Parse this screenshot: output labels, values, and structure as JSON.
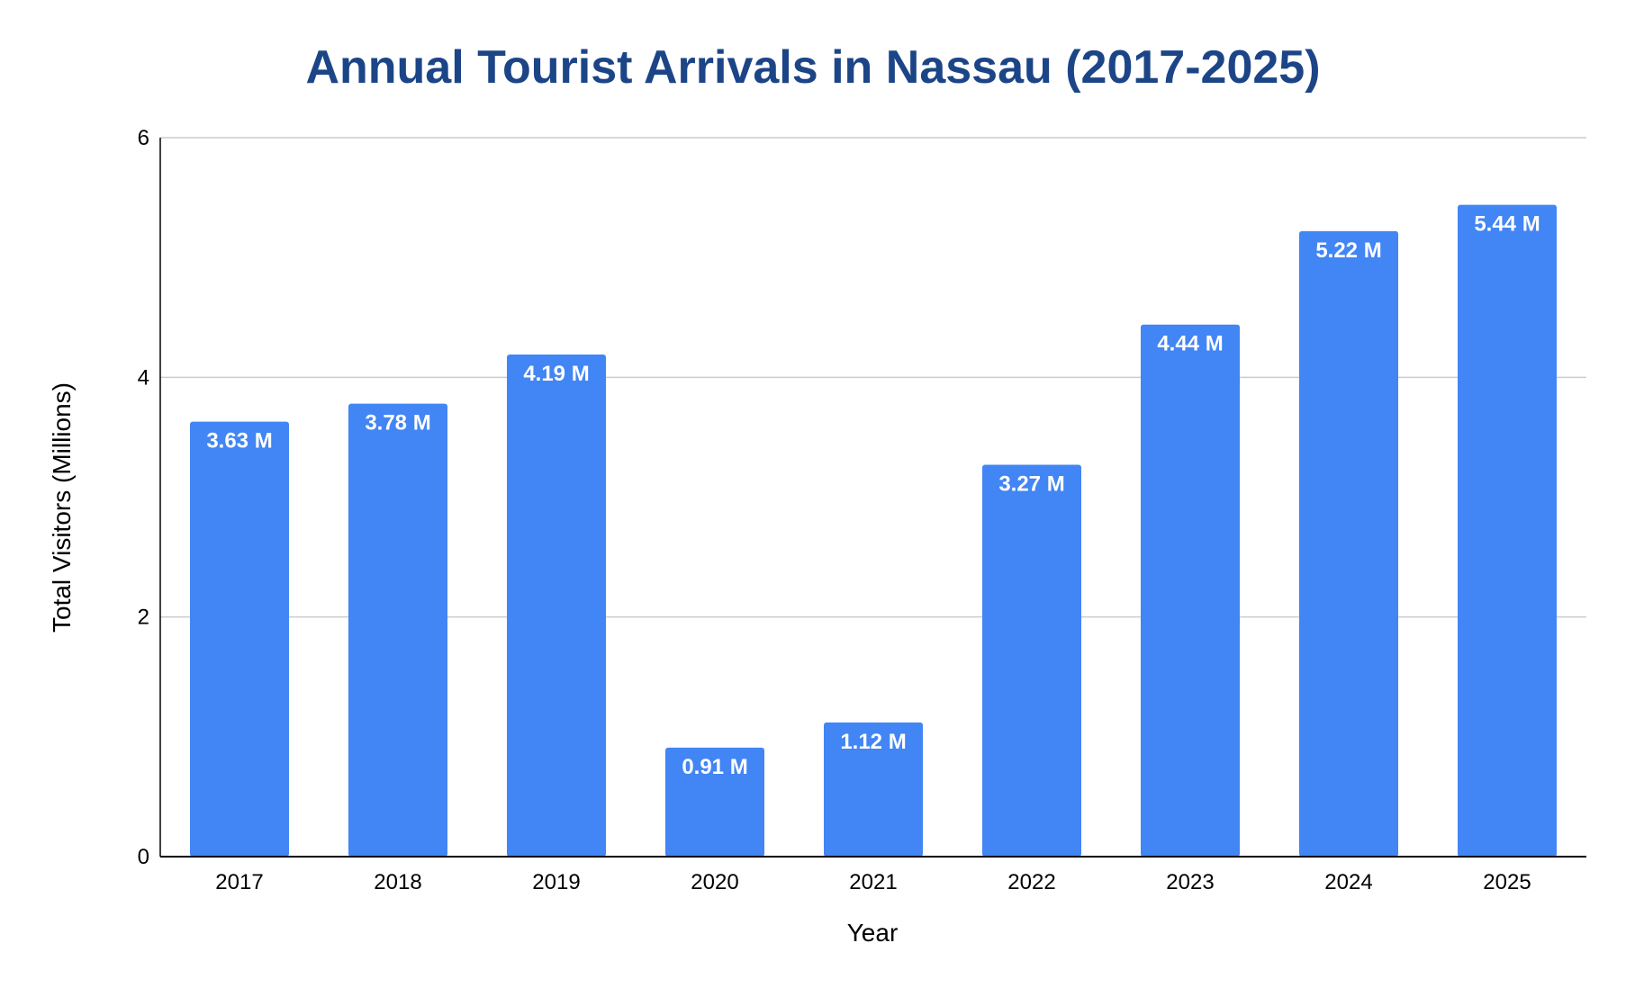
{
  "chart_data": {
    "type": "bar",
    "title": "Annual Tourist Arrivals in Nassau (2017-2025)",
    "xlabel": "Year",
    "ylabel": "Total Visitors (Millions)",
    "categories": [
      "2017",
      "2018",
      "2019",
      "2020",
      "2021",
      "2022",
      "2023",
      "2024",
      "2025"
    ],
    "values": [
      3.63,
      3.78,
      4.19,
      0.91,
      1.12,
      3.27,
      4.44,
      5.22,
      5.44
    ],
    "data_labels": [
      "3.63 M",
      "3.78 M",
      "4.19 M",
      "0.91 M",
      "1.12 M",
      "3.27 M",
      "4.44 M",
      "5.22 M",
      "5.44 M"
    ],
    "ylim": [
      0,
      6
    ],
    "yticks": [
      0,
      2,
      4,
      6
    ],
    "grid": true,
    "legend": "none",
    "colors": {
      "bar": "#4285f4",
      "title": "#1c4587",
      "grid": "#cccccc",
      "axis": "#000000",
      "data_label": "#ffffff"
    }
  }
}
